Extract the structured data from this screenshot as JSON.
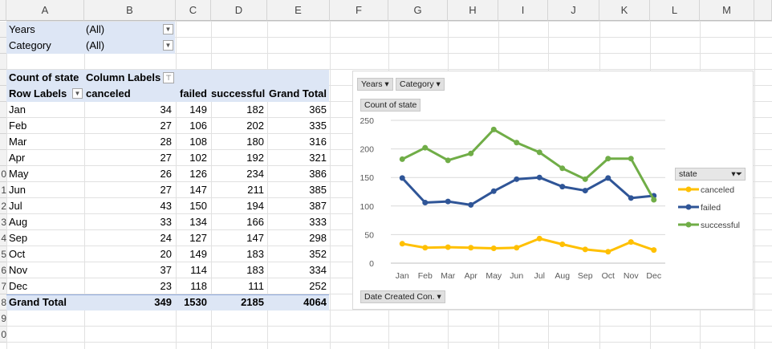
{
  "columns": [
    "A",
    "B",
    "C",
    "D",
    "E",
    "F",
    "G",
    "H",
    "I",
    "J",
    "K",
    "L",
    "M"
  ],
  "row_numbers": [
    "",
    "",
    "",
    "",
    "",
    "",
    "",
    "",
    "",
    "0",
    "1",
    "2",
    "3",
    "4",
    "5",
    "6",
    "7",
    "8",
    "9",
    "0"
  ],
  "filters": [
    {
      "label": "Years",
      "value": "(All)"
    },
    {
      "label": "Category",
      "value": "(All)"
    }
  ],
  "pivot": {
    "corner_label": "Count of state",
    "column_labels": "Column Labels",
    "row_labels": "Row Labels",
    "headers": [
      "canceled",
      "failed",
      "successful",
      "Grand Total"
    ],
    "rows": [
      {
        "month": "Jan",
        "canceled": "34",
        "failed": "149",
        "successful": "182",
        "total": "365"
      },
      {
        "month": "Feb",
        "canceled": "27",
        "failed": "106",
        "successful": "202",
        "total": "335"
      },
      {
        "month": "Mar",
        "canceled": "28",
        "failed": "108",
        "successful": "180",
        "total": "316"
      },
      {
        "month": "Apr",
        "canceled": "27",
        "failed": "102",
        "successful": "192",
        "total": "321"
      },
      {
        "month": "May",
        "canceled": "26",
        "failed": "126",
        "successful": "234",
        "total": "386"
      },
      {
        "month": "Jun",
        "canceled": "27",
        "failed": "147",
        "successful": "211",
        "total": "385"
      },
      {
        "month": "Jul",
        "canceled": "43",
        "failed": "150",
        "successful": "194",
        "total": "387"
      },
      {
        "month": "Aug",
        "canceled": "33",
        "failed": "134",
        "successful": "166",
        "total": "333"
      },
      {
        "month": "Sep",
        "canceled": "24",
        "failed": "127",
        "successful": "147",
        "total": "298"
      },
      {
        "month": "Oct",
        "canceled": "20",
        "failed": "149",
        "successful": "183",
        "total": "352"
      },
      {
        "month": "Nov",
        "canceled": "37",
        "failed": "114",
        "successful": "183",
        "total": "334"
      },
      {
        "month": "Dec",
        "canceled": "23",
        "failed": "118",
        "successful": "111",
        "total": "252"
      }
    ],
    "grand_total": {
      "label": "Grand Total",
      "canceled": "349",
      "failed": "1530",
      "successful": "2185",
      "total": "4064"
    }
  },
  "chart_buttons": {
    "years": "Years",
    "category": "Category",
    "value_field": "Count of state",
    "axis_field": "Date Created Con.",
    "legend_field": "state"
  },
  "chart_data": {
    "type": "line",
    "categories": [
      "Jan",
      "Feb",
      "Mar",
      "Apr",
      "May",
      "Jun",
      "Jul",
      "Aug",
      "Sep",
      "Oct",
      "Nov",
      "Dec"
    ],
    "series": [
      {
        "name": "canceled",
        "color": "#ffc000",
        "values": [
          34,
          27,
          28,
          27,
          26,
          27,
          43,
          33,
          24,
          20,
          37,
          23
        ]
      },
      {
        "name": "failed",
        "color": "#2f5597",
        "values": [
          149,
          106,
          108,
          102,
          126,
          147,
          150,
          134,
          127,
          149,
          114,
          118
        ]
      },
      {
        "name": "successful",
        "color": "#70ad47",
        "values": [
          182,
          202,
          180,
          192,
          234,
          211,
          194,
          166,
          147,
          183,
          183,
          111
        ]
      }
    ],
    "yticks": [
      "0",
      "50",
      "100",
      "150",
      "200",
      "250"
    ],
    "ylim": [
      0,
      250
    ],
    "grid": true,
    "legend_position": "right"
  }
}
